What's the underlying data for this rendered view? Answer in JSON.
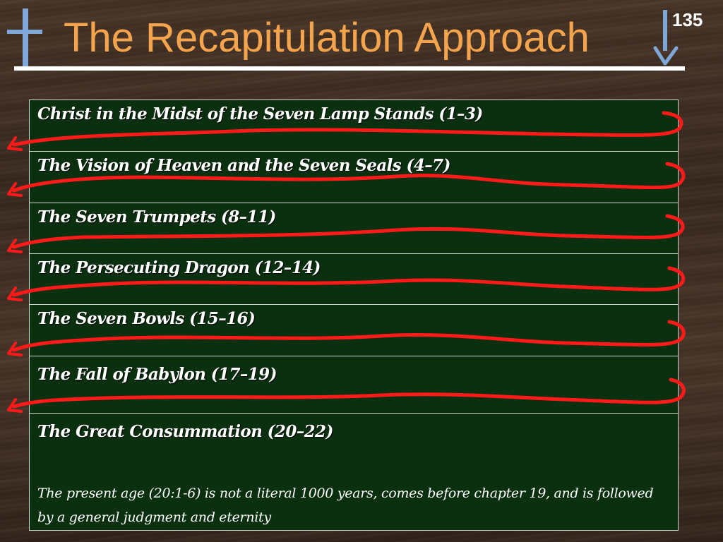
{
  "slide": {
    "number": "135",
    "title": "The Recapitulation Approach"
  },
  "rows": [
    {
      "label": "Christ in the Midst of the Seven Lamp Stands (1–3)"
    },
    {
      "label": "The Vision of Heaven and the Seven Seals (4–7)"
    },
    {
      "label": "The Seven Trumpets (8–11)"
    },
    {
      "label": "The Persecuting Dragon (12–14)"
    },
    {
      "label": "The Seven Bowls (15–16)"
    },
    {
      "label": "The Fall of Babylon (17–19)"
    },
    {
      "label": "The Great Consummation (20–22)",
      "note": "The present age (20:1-6) is not a literal 1000 years, comes before chapter 19, and is followed by a general judgment and eternity"
    }
  ],
  "colors": {
    "title": "#f4a44c",
    "icon_blue": "#7fa8d8",
    "box_fill": "#0b3010",
    "loop_arrows": "#ff1a1a"
  },
  "icons": [
    "cross-icon",
    "down-arrow-icon"
  ]
}
